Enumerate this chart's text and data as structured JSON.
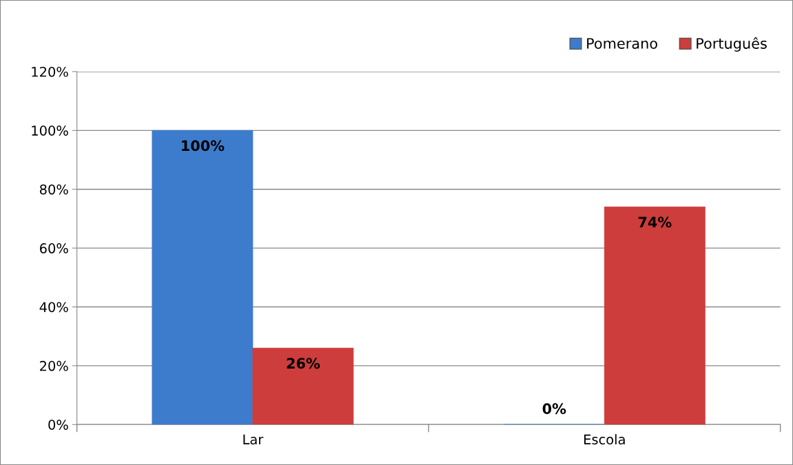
{
  "chart_data": {
    "type": "bar",
    "categories": [
      "Lar",
      "Escola"
    ],
    "series": [
      {
        "name": "Pomerano",
        "color": "#3d7ccc",
        "values": [
          100,
          0
        ],
        "value_labels": [
          "100%",
          "0%"
        ]
      },
      {
        "name": "Português",
        "color": "#cc3d3b",
        "values": [
          26,
          74
        ],
        "value_labels": [
          "26%",
          "74%"
        ]
      }
    ],
    "ylim": [
      0,
      120
    ],
    "yticks": [
      {
        "value": 0,
        "label": "0%"
      },
      {
        "value": 20,
        "label": "20%"
      },
      {
        "value": 40,
        "label": "40%"
      },
      {
        "value": 60,
        "label": "60%"
      },
      {
        "value": 80,
        "label": "80%"
      },
      {
        "value": 100,
        "label": "100%"
      },
      {
        "value": 120,
        "label": "120%"
      }
    ],
    "grid": "y",
    "legend": "top right"
  }
}
